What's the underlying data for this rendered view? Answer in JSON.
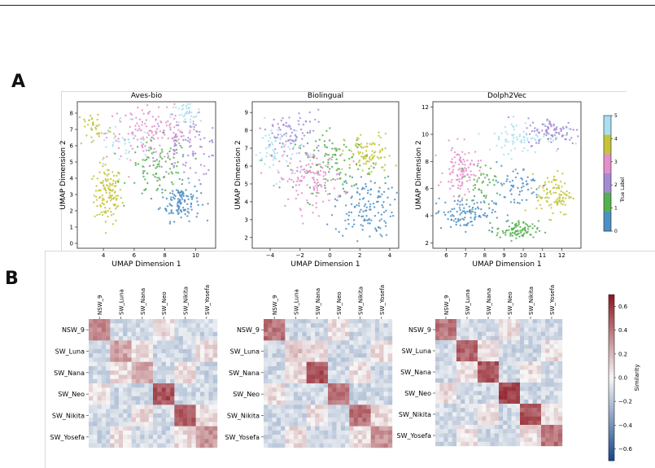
{
  "panels": {
    "a": "A",
    "b": "B"
  },
  "scatter_axis": {
    "xlabel": "UMAP Dimension 1",
    "ylabel": "UMAP Dimension 2"
  },
  "colors": {
    "0": "#4e8fc4",
    "1": "#55b04f",
    "2": "#a38bd3",
    "3": "#e38fca",
    "4": "#c4c43c",
    "5": "#a9dfee"
  },
  "colorbar_a": {
    "label": "True Label",
    "ticks": [
      "0",
      "1",
      "2",
      "3",
      "4",
      "5"
    ]
  },
  "colorbar_b": {
    "label": "Similarity",
    "ticks": [
      "0.6",
      "0.4",
      "0.2",
      "0.0",
      "−0.2",
      "−0.4",
      "−0.6"
    ]
  },
  "heatmap_labels": [
    "NSW_9",
    "SW_Luna",
    "SW_Nana",
    "SW_Neo",
    "SW_Nikita",
    "SW_Yosefa"
  ],
  "chart_data": [
    {
      "type": "scatter",
      "title": "Aves-bio",
      "xlabel": "UMAP Dimension 1",
      "ylabel": "UMAP Dimension 2",
      "xticks": [
        "4",
        "6",
        "8",
        "10"
      ],
      "yticks": [
        "0",
        "1",
        "2",
        "3",
        "4",
        "5",
        "6",
        "7",
        "8"
      ],
      "xlim": [
        2.3,
        11.3
      ],
      "ylim": [
        -0.3,
        8.7
      ],
      "legend": "True Label colorbar (0-5)",
      "clusters": [
        {
          "label": 4,
          "cx": 4.3,
          "cy": 3.0,
          "sx": 0.45,
          "sy": 0.9,
          "n": 130
        },
        {
          "label": 0,
          "cx": 9.0,
          "cy": 2.6,
          "sx": 0.65,
          "sy": 0.6,
          "n": 120
        },
        {
          "label": 3,
          "cx": 7.2,
          "cy": 6.8,
          "sx": 1.5,
          "sy": 0.8,
          "n": 140
        },
        {
          "label": 1,
          "cx": 7.6,
          "cy": 4.6,
          "sx": 1.0,
          "sy": 0.9,
          "n": 90
        },
        {
          "label": 2,
          "cx": 9.5,
          "cy": 5.9,
          "sx": 1.2,
          "sy": 0.9,
          "n": 90
        },
        {
          "label": 5,
          "cx": 9.4,
          "cy": 7.9,
          "sx": 0.5,
          "sy": 0.4,
          "n": 40
        },
        {
          "label": 4,
          "cx": 3.4,
          "cy": 7.1,
          "sx": 0.6,
          "sy": 0.6,
          "n": 40
        },
        {
          "label": 5,
          "cx": 5.2,
          "cy": 6.2,
          "sx": 1.0,
          "sy": 0.8,
          "n": 40
        }
      ]
    },
    {
      "type": "scatter",
      "title": "Biolingual",
      "xlabel": "UMAP Dimension 1",
      "ylabel": "UMAP Dimension 2",
      "xticks": [
        "−4",
        "−2",
        "0",
        "2",
        "4"
      ],
      "yticks": [
        "2",
        "3",
        "4",
        "5",
        "6",
        "7",
        "8",
        "9"
      ],
      "xlim": [
        -5.2,
        4.6
      ],
      "ylim": [
        1.4,
        9.6
      ],
      "legend": "True Label colorbar (0-5)",
      "clusters": [
        {
          "label": 0,
          "cx": 2.3,
          "cy": 3.8,
          "sx": 1.0,
          "sy": 0.9,
          "n": 140
        },
        {
          "label": 4,
          "cx": 2.6,
          "cy": 6.6,
          "sx": 0.8,
          "sy": 0.6,
          "n": 90
        },
        {
          "label": 3,
          "cx": -1.3,
          "cy": 5.3,
          "sx": 1.1,
          "sy": 0.8,
          "n": 130
        },
        {
          "label": 1,
          "cx": 0.3,
          "cy": 6.2,
          "sx": 1.3,
          "sy": 0.8,
          "n": 100
        },
        {
          "label": 5,
          "cx": -3.5,
          "cy": 6.9,
          "sx": 0.8,
          "sy": 0.8,
          "n": 70
        },
        {
          "label": 2,
          "cx": -2.6,
          "cy": 7.7,
          "sx": 1.1,
          "sy": 0.8,
          "n": 90
        }
      ]
    },
    {
      "type": "scatter",
      "title": "Dolph2Vec",
      "xlabel": "UMAP Dimension 1",
      "ylabel": "UMAP Dimension 2",
      "xticks": [
        "6",
        "7",
        "8",
        "9",
        "10",
        "11",
        "12"
      ],
      "yticks": [
        "2",
        "4",
        "6",
        "8",
        "10",
        "12"
      ],
      "xlim": [
        5.3,
        13.0
      ],
      "ylim": [
        1.6,
        12.4
      ],
      "legend": "True Label colorbar (0-5)",
      "clusters": [
        {
          "label": 3,
          "cx": 6.8,
          "cy": 7.3,
          "sx": 0.45,
          "sy": 0.9,
          "n": 110
        },
        {
          "label": 0,
          "cx": 6.9,
          "cy": 4.2,
          "sx": 0.8,
          "sy": 0.6,
          "n": 110
        },
        {
          "label": 1,
          "cx": 9.7,
          "cy": 2.9,
          "sx": 0.55,
          "sy": 0.35,
          "n": 90
        },
        {
          "label": 4,
          "cx": 11.6,
          "cy": 5.6,
          "sx": 0.45,
          "sy": 0.8,
          "n": 100
        },
        {
          "label": 2,
          "cx": 11.6,
          "cy": 10.2,
          "sx": 0.7,
          "sy": 0.5,
          "n": 90
        },
        {
          "label": 5,
          "cx": 10.0,
          "cy": 9.8,
          "sx": 1.0,
          "sy": 0.6,
          "n": 80
        },
        {
          "label": 0,
          "cx": 9.6,
          "cy": 6.2,
          "sx": 0.7,
          "sy": 0.8,
          "n": 60
        },
        {
          "label": 1,
          "cx": 7.8,
          "cy": 6.4,
          "sx": 0.4,
          "sy": 0.7,
          "n": 40
        }
      ]
    },
    {
      "type": "heatmap",
      "title": "",
      "categories": [
        "NSW_9",
        "SW_Luna",
        "SW_Nana",
        "SW_Neo",
        "SW_Nikita",
        "SW_Yosefa"
      ],
      "diag": [
        0.35,
        0.25,
        0.25,
        0.5,
        0.5,
        0.3
      ],
      "colorbar_range": [
        -0.7,
        0.7
      ]
    },
    {
      "type": "heatmap",
      "title": "",
      "categories": [
        "NSW_9",
        "SW_Luna",
        "SW_Nana",
        "SW_Neo",
        "SW_Nikita",
        "SW_Yosefa"
      ],
      "diag": [
        0.4,
        0.15,
        0.5,
        0.4,
        0.4,
        0.3
      ],
      "colorbar_range": [
        -0.7,
        0.7
      ]
    },
    {
      "type": "heatmap",
      "title": "",
      "categories": [
        "NSW_9",
        "SW_Luna",
        "SW_Nana",
        "SW_Neo",
        "SW_Nikita",
        "SW_Yosefa"
      ],
      "diag": [
        0.4,
        0.45,
        0.5,
        0.55,
        0.5,
        0.4
      ],
      "colorbar_range": [
        -0.7,
        0.7
      ]
    }
  ]
}
